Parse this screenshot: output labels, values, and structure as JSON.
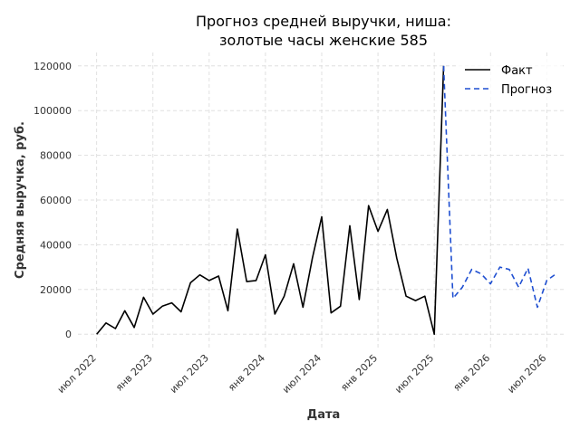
{
  "chart_data": {
    "type": "line",
    "title_line1": "Прогноз средней выручки, ниша:",
    "title_line2": "золотые часы женские 585",
    "xlabel": "Дата",
    "ylabel": "Средняя выручка, руб.",
    "x_tick_labels": [
      "июл 2022",
      "янв 2023",
      "июл 2023",
      "янв 2024",
      "июл 2024",
      "янв 2025",
      "июл 2025",
      "янв 2026",
      "июл 2026"
    ],
    "x_ticks": [
      "2022-07",
      "2023-01",
      "2023-07",
      "2024-01",
      "2024-07",
      "2025-01",
      "2025-07",
      "2026-01",
      "2026-07"
    ],
    "y_ticks": [
      0,
      20000,
      40000,
      60000,
      80000,
      100000,
      120000
    ],
    "y_tick_labels": [
      "0",
      "20000",
      "40000",
      "60000",
      "80000",
      "100000",
      "120000"
    ],
    "xlim": [
      "2022-05",
      "2026-09"
    ],
    "ylim": [
      -6000,
      126000
    ],
    "grid": true,
    "legend_position": "top-right",
    "series": [
      {
        "name": "Факт",
        "color": "#000000",
        "dash": "solid",
        "x": [
          "2022-07",
          "2022-08",
          "2022-09",
          "2022-10",
          "2022-11",
          "2022-12",
          "2023-01",
          "2023-02",
          "2023-03",
          "2023-04",
          "2023-05",
          "2023-06",
          "2023-07",
          "2023-08",
          "2023-09",
          "2023-10",
          "2023-11",
          "2023-12",
          "2024-01",
          "2024-02",
          "2024-03",
          "2024-04",
          "2024-05",
          "2024-06",
          "2024-07",
          "2024-08",
          "2024-09",
          "2024-10",
          "2024-11",
          "2024-12",
          "2025-01",
          "2025-02",
          "2025-03",
          "2025-04",
          "2025-05",
          "2025-06",
          "2025-07",
          "2025-08"
        ],
        "values": [
          0,
          5000,
          2500,
          10500,
          3000,
          16500,
          9000,
          12500,
          14000,
          10000,
          23000,
          26500,
          24000,
          26000,
          10500,
          47000,
          23500,
          24000,
          35500,
          9000,
          17000,
          31500,
          12000,
          34000,
          52500,
          9500,
          12500,
          48500,
          15500,
          57500,
          46000,
          55800,
          34000,
          17000,
          15000,
          17000,
          0,
          120000
        ]
      },
      {
        "name": "Прогноз",
        "color": "#1f4fd1",
        "dash": "dashed",
        "x": [
          "2025-08",
          "2025-09",
          "2025-10",
          "2025-11",
          "2025-12",
          "2026-01",
          "2026-02",
          "2026-03",
          "2026-04",
          "2026-05",
          "2026-06",
          "2026-07",
          "2026-08"
        ],
        "values": [
          120000,
          16000,
          21000,
          29000,
          27000,
          22500,
          30000,
          29000,
          21000,
          29500,
          12000,
          24000,
          27000
        ]
      }
    ]
  }
}
